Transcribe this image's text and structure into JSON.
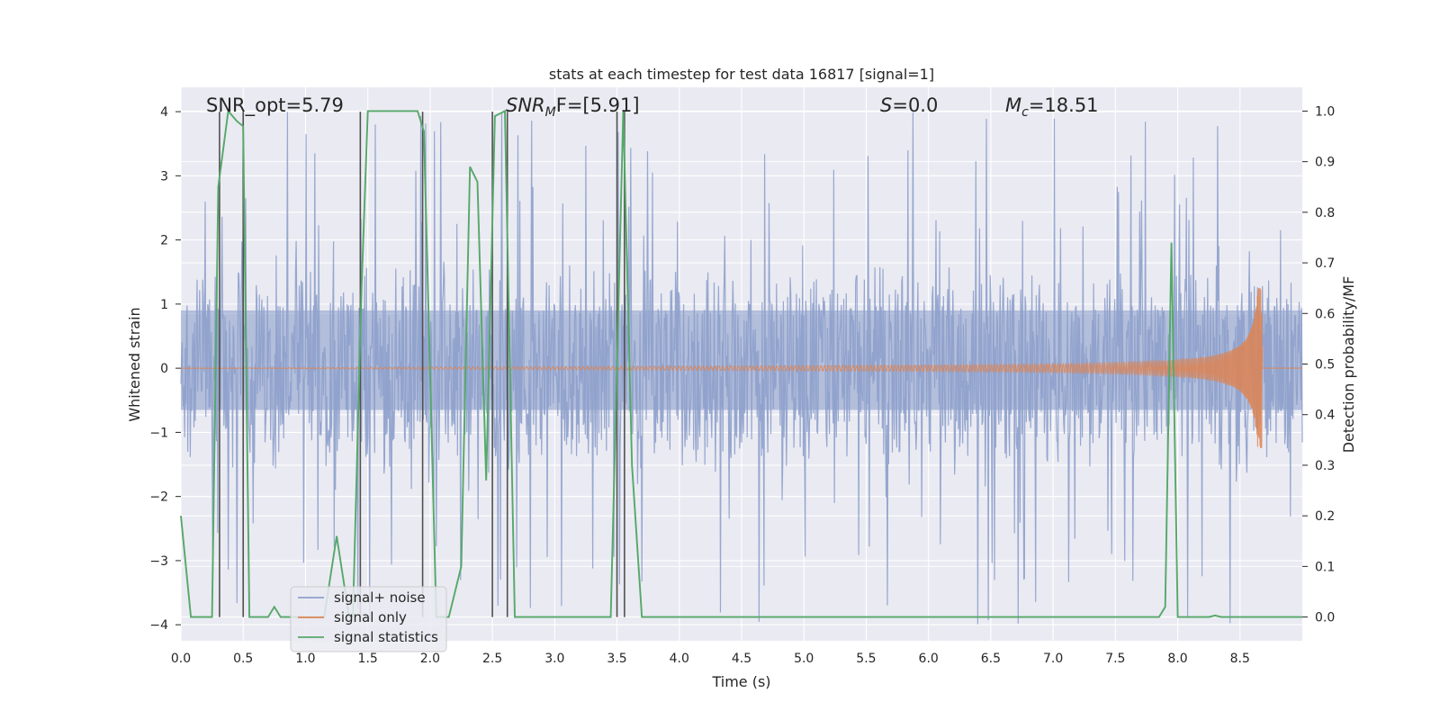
{
  "chart_data": {
    "type": "line",
    "title": "stats at each timestep for test data 16817 [signal=1]",
    "xlabel": "Time (s)",
    "ylabel": "Whitened strain",
    "ylabel_right": "Detection probability/MF",
    "xlim": [
      0,
      9.0
    ],
    "ylim": [
      -4.25,
      4.38
    ],
    "ylim_right": [
      -0.047,
      1.047
    ],
    "x_ticks": [
      0.0,
      0.5,
      1.0,
      1.5,
      2.0,
      2.5,
      3.0,
      3.5,
      4.0,
      4.5,
      5.0,
      5.5,
      6.0,
      6.5,
      7.0,
      7.5,
      8.0,
      8.5
    ],
    "x_tick_labels": [
      "0.0",
      "0.5",
      "1.0",
      "1.5",
      "2.0",
      "2.5",
      "3.0",
      "3.5",
      "4.0",
      "4.5",
      "5.0",
      "5.5",
      "6.0",
      "6.5",
      "7.0",
      "7.5",
      "8.0",
      "8.5"
    ],
    "y_ticks": [
      -4,
      -3,
      -2,
      -1,
      0,
      1,
      2,
      3,
      4
    ],
    "y_tick_labels": [
      "−4",
      "−3",
      "−2",
      "−1",
      "0",
      "1",
      "2",
      "3",
      "4"
    ],
    "y_right_ticks": [
      0.0,
      0.1,
      0.2,
      0.3,
      0.4,
      0.5,
      0.6,
      0.7,
      0.8,
      0.9,
      1.0
    ],
    "y_right_tick_labels": [
      "0.0",
      "0.1",
      "0.2",
      "0.3",
      "0.4",
      "0.5",
      "0.6",
      "0.7",
      "0.8",
      "0.9",
      "1.0"
    ],
    "grid": true,
    "legend_position": "lower-left",
    "series": [
      {
        "name": "signal+ noise",
        "color": "#8da0cb",
        "axis": "left",
        "kind": "noise",
        "sample_rate": 200,
        "core_range": [
          -0.65,
          0.9
        ],
        "typical_abs": 1.7,
        "peak_abs": 4.0
      },
      {
        "name": "signal only",
        "color": "#dd8452",
        "axis": "left",
        "kind": "chirp",
        "t_merger": 8.68,
        "peak_amplitude": 1.25,
        "base_amplitude": 0.01
      },
      {
        "name": "signal statistics",
        "color": "#55a868",
        "axis": "right",
        "kind": "line",
        "x": [
          0.0,
          0.08,
          0.25,
          0.3,
          0.38,
          0.45,
          0.5,
          0.55,
          0.7,
          0.75,
          0.8,
          1.15,
          1.25,
          1.35,
          1.38,
          1.45,
          1.5,
          1.9,
          1.95,
          2.05,
          2.15,
          2.25,
          2.32,
          2.38,
          2.45,
          2.52,
          2.6,
          2.68,
          2.73,
          3.45,
          3.55,
          3.62,
          3.7,
          7.85,
          7.9,
          7.95,
          8.0,
          8.25,
          8.3,
          8.35,
          9.0
        ],
        "values": [
          0.2,
          0.0,
          0.0,
          0.85,
          1.0,
          0.98,
          0.97,
          0.0,
          0.0,
          0.02,
          0.0,
          0.0,
          0.16,
          0.0,
          0.0,
          0.65,
          1.0,
          1.0,
          0.96,
          0.0,
          0.0,
          0.1,
          0.89,
          0.86,
          0.27,
          0.99,
          1.0,
          0.0,
          0.0,
          0.0,
          1.0,
          0.3,
          0.0,
          0.0,
          0.02,
          0.74,
          0.0,
          0.0,
          0.003,
          0.0,
          0.0
        ]
      }
    ],
    "vlines": [
      0.31,
      0.5,
      1.44,
      1.94,
      2.5,
      2.62,
      3.5,
      3.56
    ],
    "annotations": {
      "snr_opt": "SNR_opt=5.79",
      "snr_mf_base": "SNR",
      "snr_mf_sub": "M",
      "snr_mf_tail": "F=[5.91]",
      "s_label": "S",
      "s_value": "=0.0",
      "mc_base": "M",
      "mc_sub": "c",
      "mc_value": "=18.51"
    },
    "colors": {
      "plot_background": "#eaeaf2",
      "grid": "#ffffff",
      "vline": "#505050",
      "legend_background": "#eaeaf2",
      "legend_border": "#cccccc"
    }
  }
}
